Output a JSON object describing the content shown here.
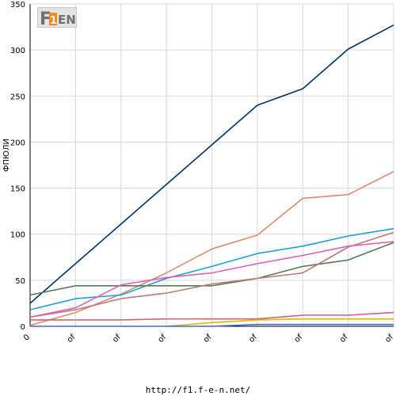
{
  "chart_data": {
    "type": "line",
    "ylabel": "ФПЮЛИ",
    "ylim": [
      0,
      350
    ],
    "yticks": [
      0,
      50,
      100,
      150,
      200,
      250,
      300,
      350
    ],
    "grid": true,
    "categories": [
      "0",
      "of",
      "of",
      "of",
      "of",
      "of",
      "of",
      "of",
      "of"
    ],
    "series": [
      {
        "color": "#003366",
        "values": [
          25,
          68,
          111,
          154,
          197,
          240,
          258,
          301,
          327
        ]
      },
      {
        "color": "#e08a6e",
        "values": [
          1,
          15,
          35,
          58,
          84,
          99,
          139,
          143,
          168
        ]
      },
      {
        "color": "#1aa0dd",
        "values": [
          18,
          30,
          34,
          52,
          65,
          79,
          87,
          98,
          106
        ]
      },
      {
        "color": "#587a58",
        "values": [
          34,
          44,
          44,
          44,
          44,
          52,
          65,
          72,
          91
        ]
      },
      {
        "color": "#bd7a7a",
        "values": [
          10,
          18,
          30,
          36,
          46,
          52,
          58,
          86,
          102
        ]
      },
      {
        "color": "#e060b8",
        "values": [
          10,
          20,
          45,
          53,
          58,
          68,
          77,
          87,
          92
        ]
      },
      {
        "color": "#cc6677",
        "values": [
          7,
          7,
          7,
          8,
          8,
          8,
          12,
          12,
          15
        ]
      },
      {
        "color": "#e0b800",
        "values": [
          null,
          null,
          null,
          0,
          4,
          7,
          8,
          8,
          8
        ]
      },
      {
        "color": "#4466cc",
        "values": [
          0,
          0,
          0,
          0,
          0,
          2,
          2,
          2,
          2
        ]
      }
    ]
  },
  "logo": {
    "text": "F1EN"
  },
  "footer": {
    "url": "http://f1.f-e-n.net/"
  }
}
